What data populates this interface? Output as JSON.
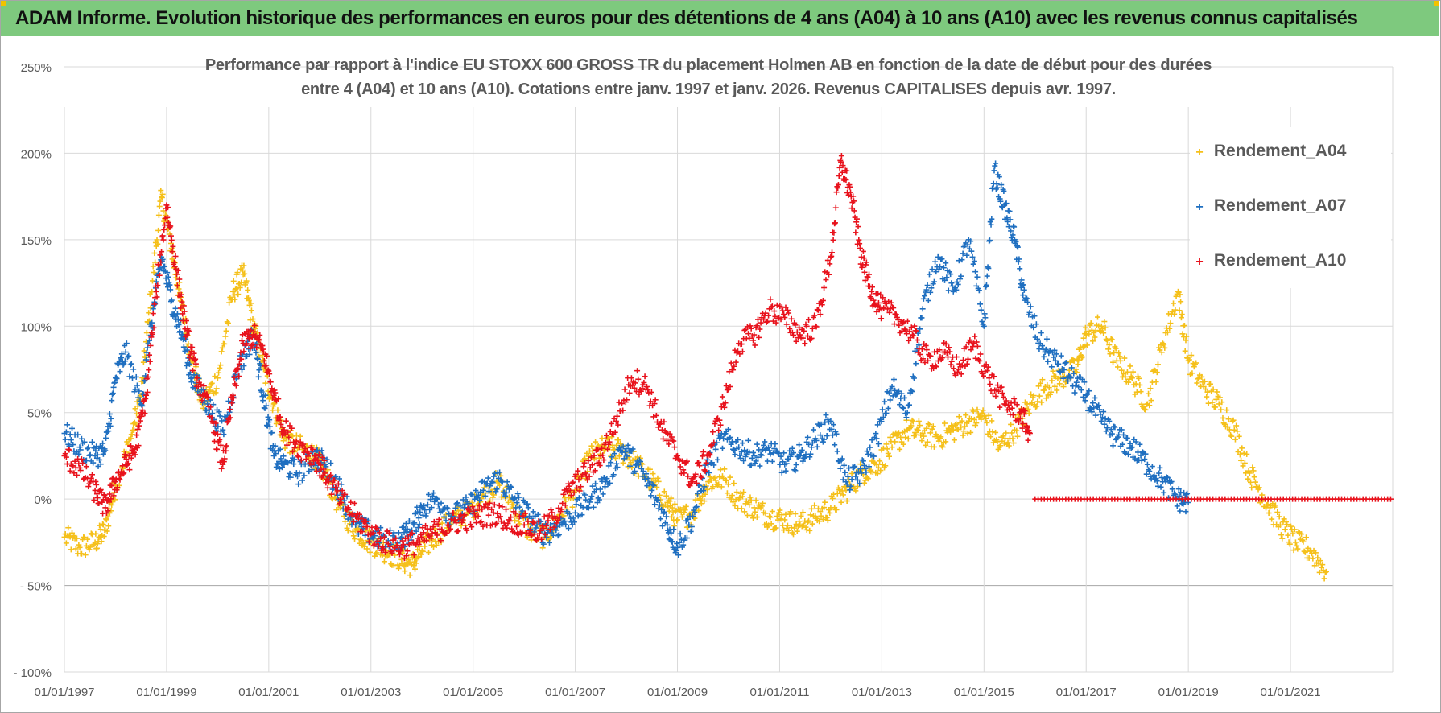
{
  "header": {
    "banner_text": "ADAM Informe. Evolution historique des performances en euros pour des détentions de 4 ans (A04) à 10 ans (A10) avec les revenus connus capitalisés"
  },
  "colors": {
    "banner_bg": "#7ec97e",
    "A04": "#f5c01a",
    "A07": "#1f6fc0",
    "A10": "#e8121c",
    "grid": "#d9d9d9",
    "text": "#595959"
  },
  "chart_data": {
    "type": "scatter",
    "title_line1": "Performance par rapport à l'indice EU STOXX 600 GROSS TR  du placement Holmen AB en fonction de la date de début pour des durées",
    "title_line2": "entre 4 (A04) et 10 ans (A10).  Cotations entre janv. 1997 et janv. 2026. Revenus CAPITALISES depuis avr. 1997.",
    "xlabel": "",
    "ylabel": "",
    "x_range": [
      1997.0,
      2023.0
    ],
    "ylim": [
      -100,
      250
    ],
    "y_ticks": [
      -100,
      -50,
      0,
      50,
      100,
      150,
      200,
      250
    ],
    "y_tick_labels": [
      "- 100%",
      "- 50%",
      "0%",
      "50%",
      "100%",
      "150%",
      "200%",
      "250%"
    ],
    "x_ticks": [
      1997,
      1999,
      2001,
      2003,
      2005,
      2007,
      2009,
      2011,
      2013,
      2015,
      2017,
      2019,
      2021
    ],
    "x_tick_labels": [
      "01/01/1997",
      "01/01/1999",
      "01/01/2001",
      "01/01/2003",
      "01/01/2005",
      "01/01/2007",
      "01/01/2009",
      "01/01/2011",
      "01/01/2013",
      "01/01/2015",
      "01/01/2017",
      "01/01/2019",
      "01/01/2021"
    ],
    "grid": true,
    "legend_position": "top-right",
    "marker": "+",
    "series": [
      {
        "name": "Rendement_A04",
        "color": "#f5c01a",
        "x": [
          1997.0,
          1997.3,
          1997.6,
          1997.8,
          1998.0,
          1998.3,
          1998.5,
          1998.7,
          1998.9,
          1999.1,
          1999.3,
          1999.5,
          1999.7,
          2000.0,
          2000.3,
          2000.5,
          2000.7,
          2000.9,
          2001.1,
          2001.3,
          2001.6,
          2001.9,
          2002.1,
          2002.4,
          2002.7,
          2003.0,
          2003.3,
          2003.6,
          2003.8,
          2004.0,
          2004.3,
          2004.6,
          2004.9,
          2005.2,
          2005.5,
          2005.8,
          2006.1,
          2006.4,
          2006.7,
          2007.0,
          2007.3,
          2007.6,
          2007.9,
          2008.2,
          2008.5,
          2008.8,
          2009.0,
          2009.3,
          2009.6,
          2009.9,
          2010.2,
          2010.5,
          2010.8,
          2011.1,
          2011.4,
          2011.7,
          2012.0,
          2012.3,
          2012.6,
          2012.9,
          2013.2,
          2013.5,
          2013.8,
          2014.1,
          2014.4,
          2014.7,
          2015.0,
          2015.3,
          2015.6,
          2015.9,
          2016.2,
          2016.5,
          2016.8,
          2017.0,
          2017.3,
          2017.6,
          2017.9,
          2018.2,
          2018.5,
          2018.8,
          2019.0,
          2019.3,
          2019.6,
          2019.9,
          2020.2,
          2020.5,
          2020.8,
          2021.1,
          2021.4,
          2021.7
        ],
        "values": [
          -22,
          -28,
          -25,
          -18,
          8,
          35,
          60,
          120,
          175,
          145,
          110,
          80,
          55,
          70,
          120,
          130,
          100,
          75,
          55,
          35,
          30,
          25,
          15,
          -5,
          -18,
          -25,
          -30,
          -35,
          -38,
          -30,
          -20,
          -12,
          -8,
          2,
          10,
          -5,
          -18,
          -22,
          -10,
          5,
          25,
          30,
          28,
          20,
          10,
          -2,
          -12,
          -8,
          10,
          12,
          0,
          -5,
          -10,
          -12,
          -15,
          -10,
          -5,
          5,
          15,
          20,
          30,
          40,
          38,
          35,
          40,
          45,
          48,
          30,
          40,
          55,
          65,
          70,
          75,
          95,
          100,
          80,
          70,
          55,
          90,
          120,
          80,
          65,
          55,
          40,
          15,
          0,
          -15,
          -25,
          -30,
          -42
        ]
      },
      {
        "name": "Rendement_A07",
        "color": "#1f6fc0",
        "x": [
          1997.0,
          1997.3,
          1997.6,
          1997.8,
          1998.0,
          1998.2,
          1998.5,
          1998.7,
          1998.9,
          1999.1,
          1999.3,
          1999.5,
          1999.8,
          2000.1,
          2000.4,
          2000.7,
          2000.9,
          2001.1,
          2001.3,
          2001.6,
          2001.9,
          2002.1,
          2002.4,
          2002.7,
          2003.0,
          2003.3,
          2003.6,
          2003.8,
          2004.0,
          2004.3,
          2004.6,
          2004.9,
          2005.2,
          2005.5,
          2005.8,
          2006.1,
          2006.4,
          2006.7,
          2007.0,
          2007.3,
          2007.6,
          2007.9,
          2008.2,
          2008.5,
          2008.8,
          2009.0,
          2009.3,
          2009.6,
          2009.9,
          2010.2,
          2010.5,
          2010.8,
          2011.1,
          2011.4,
          2011.7,
          2012.0,
          2012.3,
          2012.6,
          2012.9,
          2013.2,
          2013.5,
          2013.8,
          2014.1,
          2014.4,
          2014.7,
          2015.0,
          2015.2,
          2015.4,
          2015.6,
          2015.8,
          2016.1,
          2016.4,
          2016.7,
          2017.0,
          2017.3,
          2017.6,
          2017.9,
          2018.2,
          2018.5,
          2018.8,
          2019.0
        ],
        "values": [
          38,
          30,
          25,
          28,
          70,
          85,
          55,
          100,
          140,
          115,
          95,
          70,
          55,
          40,
          75,
          95,
          60,
          25,
          20,
          15,
          25,
          20,
          5,
          -15,
          -20,
          -25,
          -22,
          -18,
          -5,
          0,
          -10,
          -5,
          5,
          12,
          0,
          -10,
          -20,
          -15,
          -8,
          0,
          10,
          30,
          20,
          5,
          -15,
          -28,
          -10,
          20,
          35,
          30,
          25,
          28,
          20,
          25,
          35,
          45,
          10,
          15,
          35,
          65,
          50,
          110,
          140,
          120,
          150,
          100,
          190,
          170,
          150,
          115,
          90,
          80,
          70,
          60,
          45,
          35,
          30,
          20,
          10,
          0,
          -2
        ]
      },
      {
        "name": "Rendement_A10",
        "color": "#e8121c",
        "x": [
          1997.0,
          1997.3,
          1997.6,
          1997.8,
          1998.0,
          1998.2,
          1998.4,
          1998.6,
          1998.8,
          1999.0,
          1999.2,
          1999.4,
          1999.6,
          1999.9,
          2000.1,
          2000.3,
          2000.5,
          2000.7,
          2000.9,
          2001.1,
          2001.3,
          2001.6,
          2001.9,
          2002.1,
          2002.4,
          2002.7,
          2003.0,
          2003.3,
          2003.6,
          2003.9,
          2004.2,
          2004.5,
          2004.8,
          2005.1,
          2005.4,
          2005.7,
          2006.0,
          2006.3,
          2006.6,
          2006.9,
          2007.2,
          2007.5,
          2007.8,
          2008.1,
          2008.4,
          2008.7,
          2009.0,
          2009.3,
          2009.6,
          2009.9,
          2010.2,
          2010.5,
          2010.8,
          2011.1,
          2011.4,
          2011.7,
          2012.0,
          2012.2,
          2012.4,
          2012.6,
          2012.8,
          2013.0,
          2013.3,
          2013.6,
          2013.9,
          2014.2,
          2014.5,
          2014.8,
          2015.1,
          2015.4,
          2015.7,
          2015.9
        ],
        "values": [
          25,
          18,
          5,
          -5,
          10,
          20,
          30,
          60,
          120,
          170,
          130,
          95,
          70,
          45,
          20,
          60,
          90,
          95,
          85,
          60,
          40,
          30,
          25,
          15,
          0,
          -10,
          -20,
          -25,
          -28,
          -25,
          -20,
          -15,
          -12,
          -10,
          -8,
          -12,
          -15,
          -20,
          -10,
          5,
          15,
          25,
          45,
          70,
          65,
          40,
          25,
          10,
          25,
          55,
          90,
          95,
          110,
          105,
          95,
          100,
          140,
          195,
          175,
          140,
          120,
          110,
          105,
          95,
          80,
          85,
          75,
          90,
          70,
          55,
          50,
          38
        ]
      }
    ],
    "zero_segment": {
      "series": "Rendement_A10",
      "x_start": 2016.0,
      "x_end": 2023.0,
      "value": 0
    }
  }
}
